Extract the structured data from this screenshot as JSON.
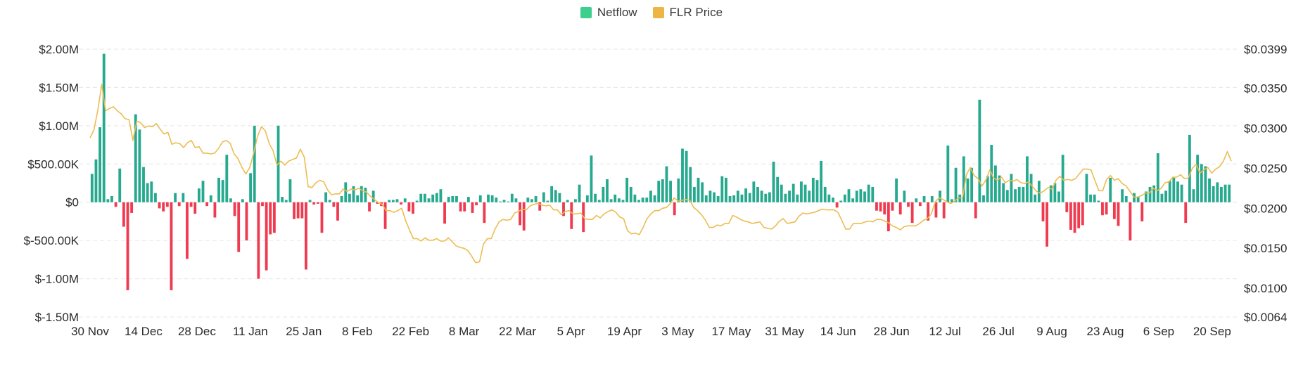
{
  "legend": {
    "netflow_label": "Netflow",
    "price_label": "FLR Price"
  },
  "colors": {
    "positive": "#26a98e",
    "negative": "#ef3a4f",
    "price": "#ecbd52",
    "legend_netflow": "#3ccf8e",
    "legend_price": "#ecb544",
    "grid": "#e6e6e6"
  },
  "chart_data": {
    "type": "bar",
    "title": "",
    "grid": true,
    "legend_position": "top-center",
    "left_axis": {
      "labels": [
        "$2.00M",
        "$1.50M",
        "$1.00M",
        "$500.00K",
        "$0",
        "$-500.00K",
        "$-1.00M",
        "$-1.50M"
      ],
      "values": [
        2000000,
        1500000,
        1000000,
        500000,
        0,
        -500000,
        -1000000,
        -1500000
      ],
      "ylim": [
        -1500000,
        2000000
      ]
    },
    "right_axis": {
      "labels": [
        "$0.0399",
        "$0.0350",
        "$0.0300",
        "$0.0250",
        "$0.0200",
        "$0.0150",
        "$0.0100",
        "$0.0064"
      ],
      "values": [
        0.0399,
        0.035,
        0.03,
        0.025,
        0.02,
        0.015,
        0.01,
        0.0064
      ],
      "ylim": [
        0.0064,
        0.0399
      ]
    },
    "x_axis": {
      "labels": [
        "30 Nov",
        "14 Dec",
        "28 Dec",
        "11 Jan",
        "25 Jan",
        "8 Feb",
        "22 Feb",
        "8 Mar",
        "22 Mar",
        "5 Apr",
        "19 Apr",
        "3 May",
        "17 May",
        "31 May",
        "14 Jun",
        "28 Jun",
        "12 Jul",
        "26 Jul",
        "9 Aug",
        "23 Aug",
        "6 Sep",
        "20 Sep"
      ],
      "start_date": "30 Nov",
      "days": 299
    },
    "series": [
      {
        "name": "Netflow",
        "type": "bar",
        "values": [
          370000,
          560000,
          980000,
          1940000,
          40000,
          80000,
          -60000,
          440000,
          -320000,
          -1150000,
          -140000,
          1150000,
          950000,
          460000,
          250000,
          270000,
          120000,
          -80000,
          -120000,
          -60000,
          -1150000,
          120000,
          -50000,
          120000,
          -740000,
          -60000,
          -150000,
          180000,
          280000,
          -50000,
          90000,
          -200000,
          320000,
          290000,
          620000,
          50000,
          -180000,
          -650000,
          40000,
          -500000,
          380000,
          1000000,
          -1000000,
          -50000,
          -890000,
          -420000,
          -400000,
          1000000,
          70000,
          30000,
          300000,
          -220000,
          -210000,
          -210000,
          -880000,
          30000,
          -30000,
          -20000,
          -400000,
          130000,
          30000,
          -60000,
          -240000,
          80000,
          260000,
          110000,
          210000,
          90000,
          210000,
          190000,
          -120000,
          150000,
          -20000,
          -50000,
          -350000,
          30000,
          30000,
          40000,
          -30000,
          50000,
          -120000,
          -150000,
          20000,
          110000,
          110000,
          50000,
          100000,
          120000,
          170000,
          -280000,
          70000,
          80000,
          80000,
          -120000,
          -120000,
          70000,
          -140000,
          -40000,
          90000,
          -270000,
          100000,
          90000,
          60000,
          10000,
          30000,
          10000,
          110000,
          50000,
          -300000,
          -370000,
          60000,
          40000,
          80000,
          -110000,
          130000,
          20000,
          210000,
          160000,
          120000,
          -180000,
          30000,
          -350000,
          40000,
          230000,
          -390000,
          90000,
          610000,
          110000,
          30000,
          200000,
          300000,
          40000,
          100000,
          50000,
          30000,
          320000,
          200000,
          100000,
          30000,
          60000,
          60000,
          150000,
          90000,
          280000,
          300000,
          470000,
          280000,
          -170000,
          310000,
          700000,
          670000,
          460000,
          200000,
          320000,
          260000,
          90000,
          150000,
          130000,
          80000,
          340000,
          320000,
          80000,
          90000,
          150000,
          100000,
          180000,
          120000,
          270000,
          200000,
          150000,
          110000,
          130000,
          530000,
          330000,
          230000,
          110000,
          150000,
          240000,
          100000,
          270000,
          230000,
          150000,
          320000,
          290000,
          540000,
          200000,
          100000,
          60000,
          -70000,
          20000,
          100000,
          170000,
          50000,
          150000,
          170000,
          140000,
          230000,
          200000,
          -110000,
          -120000,
          -160000,
          -380000,
          -110000,
          310000,
          -160000,
          150000,
          -60000,
          -270000,
          50000,
          -50000,
          80000,
          -240000,
          80000,
          -200000,
          150000,
          -210000,
          740000,
          40000,
          450000,
          100000,
          600000,
          310000,
          450000,
          -210000,
          1340000,
          90000,
          340000,
          750000,
          480000,
          350000,
          250000,
          160000,
          370000,
          170000,
          200000,
          200000,
          600000,
          370000,
          100000,
          280000,
          -250000,
          -580000,
          220000,
          250000,
          140000,
          620000,
          -130000,
          -360000,
          -400000,
          -340000,
          -300000,
          370000,
          100000,
          100000,
          20000,
          -170000,
          -160000,
          320000,
          -220000,
          -310000,
          170000,
          80000,
          -500000,
          120000,
          70000,
          -250000,
          140000,
          200000,
          220000,
          640000,
          110000,
          150000,
          280000,
          320000,
          270000,
          230000,
          -270000,
          880000,
          170000,
          620000,
          500000,
          470000,
          310000,
          210000,
          260000,
          200000,
          230000,
          230000
        ]
      },
      {
        "name": "FLR Price",
        "type": "line",
        "values": [
          0.0288,
          0.0298,
          0.0323,
          0.0355,
          0.0322,
          0.0325,
          0.0327,
          0.0322,
          0.0318,
          0.0312,
          0.0311,
          0.0285,
          0.0309,
          0.0307,
          0.0301,
          0.0303,
          0.0302,
          0.0306,
          0.0299,
          0.0293,
          0.0295,
          0.028,
          0.0282,
          0.0281,
          0.0276,
          0.0282,
          0.0285,
          0.0276,
          0.0277,
          0.0269,
          0.0269,
          0.0268,
          0.0269,
          0.0275,
          0.0283,
          0.0285,
          0.0281,
          0.0268,
          0.0262,
          0.0251,
          0.0243,
          0.0251,
          0.0269,
          0.029,
          0.0302,
          0.0297,
          0.0281,
          0.0272,
          0.0254,
          0.0259,
          0.0254,
          0.0259,
          0.0261,
          0.0263,
          0.0274,
          0.0264,
          0.0227,
          0.0226,
          0.0232,
          0.0235,
          0.0233,
          0.0223,
          0.0217,
          0.0218,
          0.0218,
          0.0224,
          0.0221,
          0.0224,
          0.0223,
          0.0225,
          0.0222,
          0.022,
          0.0215,
          0.0211,
          0.0207,
          0.0205,
          0.0197,
          0.0197,
          0.0195,
          0.0197,
          0.02,
          0.0185,
          0.0173,
          0.0162,
          0.0162,
          0.0159,
          0.0163,
          0.016,
          0.016,
          0.0162,
          0.0159,
          0.0159,
          0.0163,
          0.0158,
          0.0153,
          0.0151,
          0.015,
          0.0147,
          0.014,
          0.0132,
          0.0133,
          0.0155,
          0.0162,
          0.0162,
          0.0174,
          0.0183,
          0.0186,
          0.0185,
          0.0186,
          0.0194,
          0.0196,
          0.0199,
          0.0198,
          0.0203,
          0.0205,
          0.0206,
          0.0204,
          0.0203,
          0.0204,
          0.0198,
          0.0198,
          0.0192,
          0.0196,
          0.0197,
          0.0193,
          0.0193,
          0.0194,
          0.0187,
          0.0186,
          0.0186,
          0.0191,
          0.0188,
          0.0193,
          0.0196,
          0.0198,
          0.0195,
          0.0189,
          0.0187,
          0.0172,
          0.0168,
          0.0169,
          0.0167,
          0.0176,
          0.0187,
          0.0193,
          0.0197,
          0.0197,
          0.02,
          0.0201,
          0.0206,
          0.0213,
          0.0209,
          0.021,
          0.0211,
          0.021,
          0.0201,
          0.0197,
          0.0192,
          0.0185,
          0.0176,
          0.0176,
          0.0179,
          0.0178,
          0.0181,
          0.0181,
          0.0191,
          0.0189,
          0.0186,
          0.0184,
          0.0183,
          0.0181,
          0.0182,
          0.0183,
          0.0176,
          0.0175,
          0.0174,
          0.0178,
          0.0184,
          0.0187,
          0.0181,
          0.0182,
          0.0183,
          0.019,
          0.0194,
          0.0193,
          0.0194,
          0.0195,
          0.0197,
          0.0199,
          0.0198,
          0.0198,
          0.0198,
          0.0195,
          0.0185,
          0.0174,
          0.0174,
          0.0181,
          0.0181,
          0.0181,
          0.0183,
          0.0184,
          0.0183,
          0.0186,
          0.0186,
          0.0184,
          0.0182,
          0.0178,
          0.0176,
          0.0173,
          0.0177,
          0.0178,
          0.0178,
          0.0178,
          0.0181,
          0.0185,
          0.0187,
          0.0193,
          0.0208,
          0.0213,
          0.0211,
          0.0208,
          0.0206,
          0.0209,
          0.0213,
          0.0213,
          0.0242,
          0.0251,
          0.0241,
          0.0237,
          0.0228,
          0.0235,
          0.0248,
          0.0238,
          0.0235,
          0.0239,
          0.0232,
          0.0235,
          0.0234,
          0.0236,
          0.0232,
          0.0231,
          0.0233,
          0.0227,
          0.0221,
          0.0219,
          0.0222,
          0.0226,
          0.0224,
          0.0235,
          0.024,
          0.0235,
          0.0236,
          0.0235,
          0.0237,
          0.0243,
          0.0249,
          0.0249,
          0.0248,
          0.0235,
          0.0222,
          0.0222,
          0.0236,
          0.0241,
          0.0235,
          0.0237,
          0.0231,
          0.0228,
          0.0221,
          0.0214,
          0.0214,
          0.0216,
          0.0219,
          0.0219,
          0.0225,
          0.0222,
          0.0225,
          0.0232,
          0.0233,
          0.0239,
          0.0239,
          0.0242,
          0.0237,
          0.0238,
          0.025,
          0.0255,
          0.0244,
          0.0248,
          0.0251,
          0.0244,
          0.0249,
          0.0252,
          0.0259,
          0.0271,
          0.0259
        ]
      }
    ]
  }
}
